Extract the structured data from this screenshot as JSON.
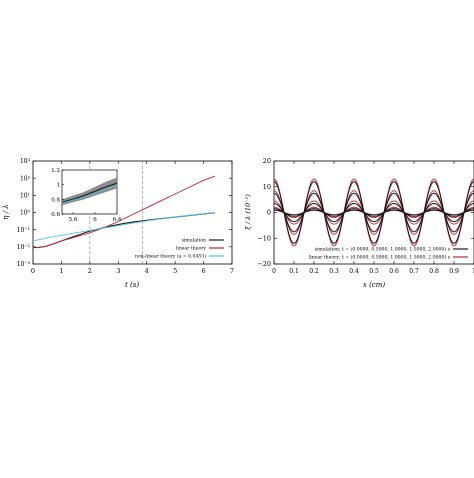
{
  "chart_data": [
    {
      "type": "line",
      "ylog": true,
      "xlabel": "t (s)",
      "ylabel": "η / λ",
      "xlim": [
        0,
        7
      ],
      "ylim_exp": [
        -3,
        3
      ],
      "xticks": [
        "0",
        "1",
        "2",
        "3",
        "4",
        "5",
        "6",
        "7"
      ],
      "yticks": [
        "10⁻³",
        "10⁻²",
        "10⁻¹",
        "10⁰",
        "10¹",
        "10²",
        "10³"
      ],
      "vlines": [
        2.0,
        3.85
      ],
      "legend_position": "bottom-right",
      "series": [
        {
          "name": "simulation",
          "color": "#1a1a1a",
          "x": [
            0,
            0.2,
            0.4,
            0.6,
            0.8,
            1.0,
            1.2,
            1.4,
            1.6,
            1.8,
            2.0,
            2.2,
            2.4,
            2.6,
            2.8,
            3.0,
            3.2,
            3.4,
            3.6,
            3.8,
            4.0,
            4.4,
            4.8,
            5.2,
            5.6,
            6.0,
            6.4
          ],
          "y": [
            0.009,
            0.0092,
            0.0103,
            0.0128,
            0.0168,
            0.022,
            0.029,
            0.038,
            0.049,
            0.064,
            0.082,
            0.1,
            0.12,
            0.145,
            0.17,
            0.2,
            0.23,
            0.26,
            0.29,
            0.32,
            0.35,
            0.42,
            0.5,
            0.59,
            0.7,
            0.82,
            0.96
          ]
        },
        {
          "name": "linear theory",
          "color": "#b8283a",
          "x": [
            0,
            0.2,
            0.4,
            0.6,
            0.8,
            1.0,
            1.5,
            2.0,
            2.5,
            3.0,
            3.5,
            4.0,
            4.5,
            5.0,
            5.5,
            6.0,
            6.4
          ],
          "y": [
            0.009,
            0.0092,
            0.0103,
            0.0128,
            0.0168,
            0.022,
            0.038,
            0.065,
            0.13,
            0.3,
            0.75,
            1.9,
            4.8,
            12,
            30,
            75,
            130
          ]
        },
        {
          "name": "non-linear theory (a = 0.0453)",
          "color": "#4fc3e8",
          "x": [
            0,
            0.5,
            1.0,
            1.5,
            2.0,
            2.5,
            3.0,
            3.5,
            4.0,
            4.5,
            5.0,
            5.5,
            6.0,
            6.4
          ],
          "y": [
            0.022,
            0.033,
            0.047,
            0.066,
            0.09,
            0.125,
            0.17,
            0.24,
            0.33,
            0.43,
            0.55,
            0.68,
            0.84,
            0.98
          ]
        }
      ],
      "inset": {
        "xlim": [
          5.4,
          6.4
        ],
        "ylim": [
          0.6,
          1.2
        ],
        "xticks": [
          "5.6",
          "6",
          "6.4"
        ],
        "yticks": [
          "0.6",
          "0.8",
          "1",
          "1.2"
        ],
        "band": {
          "x": [
            5.4,
            5.6,
            5.8,
            6.0,
            6.2,
            6.4
          ],
          "upper": [
            0.8,
            0.85,
            0.9,
            0.97,
            1.04,
            1.1
          ],
          "lower": [
            0.72,
            0.76,
            0.8,
            0.85,
            0.9,
            0.95
          ]
        },
        "line": {
          "x": [
            5.4,
            5.6,
            5.8,
            6.0,
            6.2,
            6.4
          ],
          "y": [
            0.76,
            0.8,
            0.85,
            0.91,
            0.97,
            1.02
          ]
        },
        "line2": {
          "x": [
            5.4,
            5.6,
            5.8,
            6.0,
            6.2,
            6.4
          ],
          "y": [
            0.75,
            0.79,
            0.83,
            0.88,
            0.94,
            0.99
          ]
        }
      }
    },
    {
      "type": "line",
      "xlabel": "x (cm)",
      "ylabel": "ξ / λ (10⁻²)",
      "xlim": [
        0,
        1
      ],
      "ylim": [
        -20,
        20
      ],
      "xticks": [
        "0",
        "0.1",
        "0.2",
        "0.3",
        "0.4",
        "0.5",
        "0.6",
        "0.7",
        "0.8",
        "0.9",
        "1"
      ],
      "yticks": [
        "−20",
        "−10",
        "0",
        "10",
        "20"
      ],
      "legend_position": "bottom-right",
      "wavenumber": 5,
      "simulation_amplitudes": [
        0.9,
        1.5,
        3.5,
        7.5,
        12.0
      ],
      "linear_amplitudes": [
        0.9,
        2.0,
        4.5,
        8.5,
        13.0
      ],
      "series": [
        {
          "name": "simulation; t = (0.0000, 0.5000, 1.0000, 1.5000, 2.0000) s",
          "color": "#1a1a1a"
        },
        {
          "name": "linear theory; t = (0.0000, 0.5000, 1.0000, 1.5000, 2.0000) s",
          "color": "#b8283a"
        }
      ]
    }
  ]
}
